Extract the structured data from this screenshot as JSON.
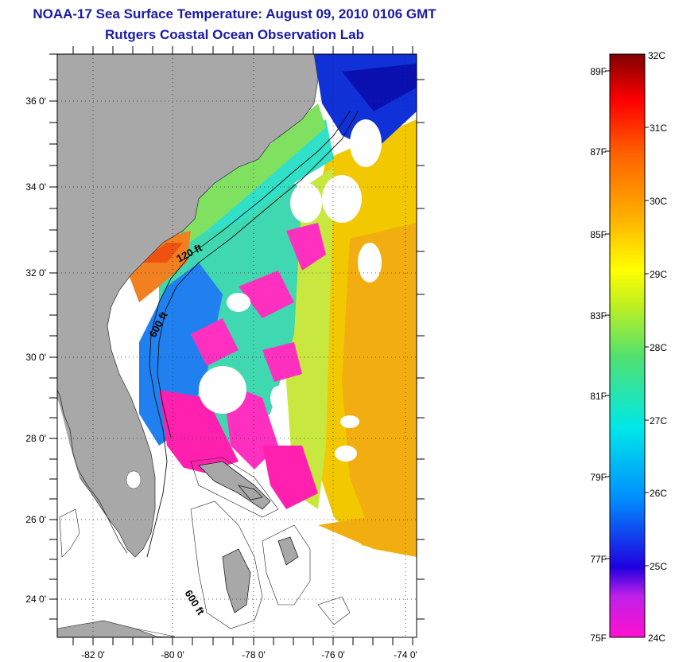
{
  "header": {
    "title": "NOAA-17 Sea Surface Temperature:  August 09, 2010 0106 GMT",
    "subtitle": "Rutgers Coastal Ocean Observation Lab"
  },
  "map": {
    "lat_labels": [
      "36 0'",
      "34 0'",
      "32 0'",
      "30 0'",
      "28 0'",
      "26 0'",
      "24 0'"
    ],
    "lon_labels": [
      "-82 0'",
      "-80 0'",
      "-78 0'",
      "-76 0'",
      "-74 0'"
    ],
    "isobath_labels": [
      "120 ft",
      "600 ft",
      "600 ft"
    ],
    "lat_range": [
      23,
      37
    ],
    "lon_range": [
      -83,
      -73
    ]
  },
  "colorbar": {
    "fahrenheit_labels": [
      "89F",
      "87F",
      "85F",
      "83F",
      "81F",
      "79F",
      "77F",
      "75F"
    ],
    "celsius_labels": [
      "32C",
      "31C",
      "30C",
      "29C",
      "28C",
      "27C",
      "26C",
      "25C",
      "24C"
    ]
  },
  "colors": {
    "title": "#1a1aa6",
    "land": "#a8a8a8",
    "no_data": "#ffffff"
  }
}
